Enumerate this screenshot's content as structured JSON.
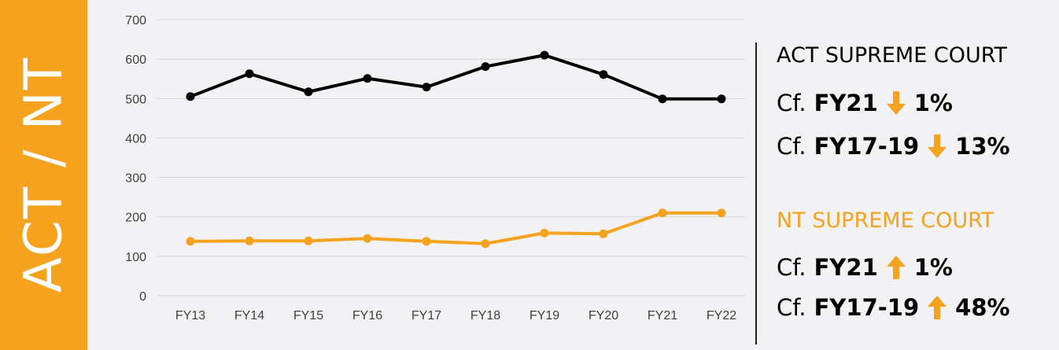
{
  "side_label": "ACT / NT",
  "colors": {
    "accent": "#f5a21f",
    "act": "#000000",
    "nt": "#f5a21f"
  },
  "chart_data": {
    "type": "line",
    "categories": [
      "FY13",
      "FY14",
      "FY15",
      "FY16",
      "FY17",
      "FY18",
      "FY19",
      "FY20",
      "FY21",
      "FY22"
    ],
    "yticks": [
      "0",
      "100",
      "200",
      "300",
      "400",
      "500",
      "600",
      "700"
    ],
    "ylim": [
      0,
      700
    ],
    "grid": true,
    "series": [
      {
        "name": "ACT SUPREME COURT",
        "color": "#000000",
        "values": [
          505,
          563,
          517,
          551,
          529,
          581,
          610,
          561,
          499,
          499
        ]
      },
      {
        "name": "NT SUPREME COURT",
        "color": "#f5a21f",
        "values": [
          138,
          139,
          139,
          145,
          138,
          132,
          159,
          157,
          210,
          210
        ]
      }
    ]
  },
  "panel": {
    "act": {
      "title": "ACT SUPREME COURT",
      "rows": [
        {
          "prefix": "Cf.",
          "period": "FY21",
          "direction": "down-arrow-icon",
          "change": "1%"
        },
        {
          "prefix": "Cf.",
          "period": "FY17-19",
          "direction": "down-arrow-icon",
          "change": "13%"
        }
      ]
    },
    "nt": {
      "title": "NT SUPREME COURT",
      "rows": [
        {
          "prefix": "Cf.",
          "period": "FY21",
          "direction": "up-arrow-icon",
          "change": "1%"
        },
        {
          "prefix": "Cf.",
          "period": "FY17-19",
          "direction": "up-arrow-icon",
          "change": "48%"
        }
      ]
    }
  }
}
